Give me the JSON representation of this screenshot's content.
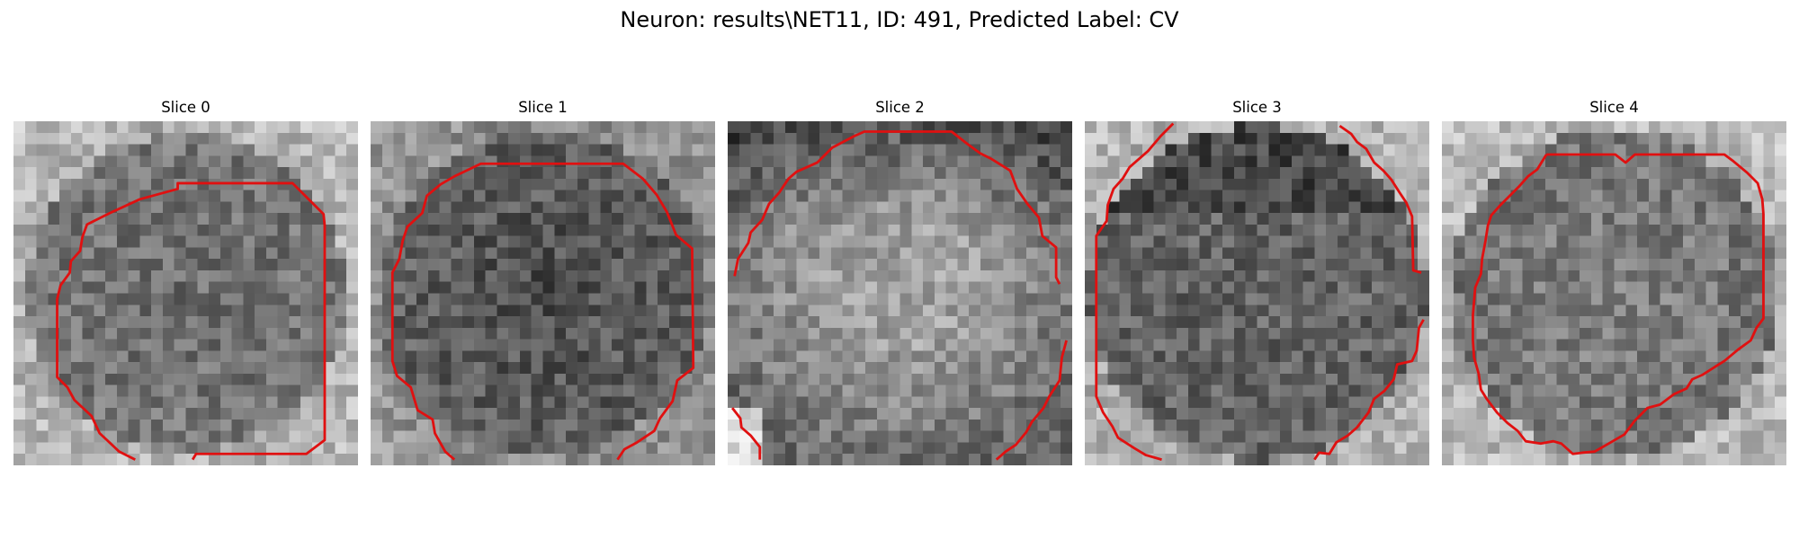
{
  "figure": {
    "title": "Neuron: results\\NET11, ID: 491, Predicted Label: CV"
  },
  "slices": [
    {
      "label": "Slice 0",
      "pattern": "ring-light-outside",
      "seed": 11
    },
    {
      "label": "Slice 1",
      "pattern": "dark-interior",
      "seed": 23
    },
    {
      "label": "Slice 2",
      "pattern": "light-center",
      "seed": 37
    },
    {
      "label": "Slice 3",
      "pattern": "gray-interior",
      "seed": 41
    },
    {
      "label": "Slice 4",
      "pattern": "light-corners",
      "seed": 53
    }
  ],
  "colors": {
    "contour": "#e01010",
    "background": "#ffffff"
  }
}
